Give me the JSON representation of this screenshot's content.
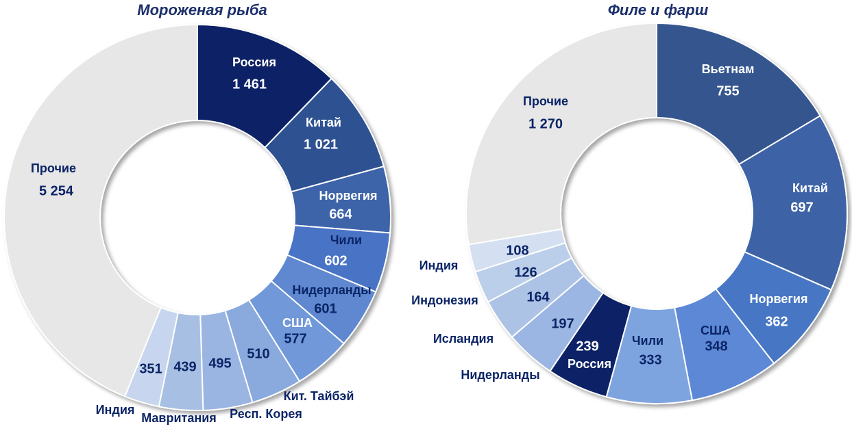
{
  "chart_data": [
    {
      "type": "pie",
      "title": "Мороженая рыба",
      "categories": [
        "Россия",
        "Китай",
        "Норвегия",
        "Чили",
        "Нидерланды",
        "США",
        "Кит. Тайбэй",
        "Респ. Корея",
        "Мавритания",
        "Индия",
        "Прочие"
      ],
      "values": [
        1461,
        1021,
        664,
        602,
        601,
        577,
        510,
        495,
        439,
        351,
        5254
      ],
      "value_labels": [
        "1 461",
        "1 021",
        "664",
        "602",
        "601",
        "577",
        "510",
        "495",
        "439",
        "351",
        "5 254"
      ],
      "colors": [
        "#0a2466",
        "#2d5192",
        "#3c63a8",
        "#4873c4",
        "#5e88d0",
        "#7198d8",
        "#8aaade",
        "#9bb5e2",
        "#a7bfe3",
        "#c7d6ee",
        "#e7e7e7"
      ],
      "donut": true,
      "start_angle_deg": 0,
      "direction": "clockwise"
    },
    {
      "type": "pie",
      "title": "Филе и фарш",
      "categories": [
        "Вьетнам",
        "Китай",
        "Норвегия",
        "США",
        "Чили",
        "Россия",
        "Нидерланды",
        "Исландия",
        "Индонезия",
        "Индия",
        "Прочие"
      ],
      "values": [
        755,
        697,
        362,
        348,
        333,
        239,
        197,
        164,
        126,
        108,
        1270
      ],
      "value_labels": [
        "755",
        "697",
        "362",
        "348",
        "333",
        "239",
        "197",
        "164",
        "126",
        "108",
        "1 270"
      ],
      "colors": [
        "#34558f",
        "#3d62a6",
        "#4677c4",
        "#5b88d6",
        "#7ea4e0",
        "#0a2466",
        "#9bb6e2",
        "#adc3e6",
        "#bccfea",
        "#d4e0f2",
        "#e7e7e7"
      ],
      "donut": true,
      "start_angle_deg": 0,
      "direction": "clockwise"
    }
  ]
}
